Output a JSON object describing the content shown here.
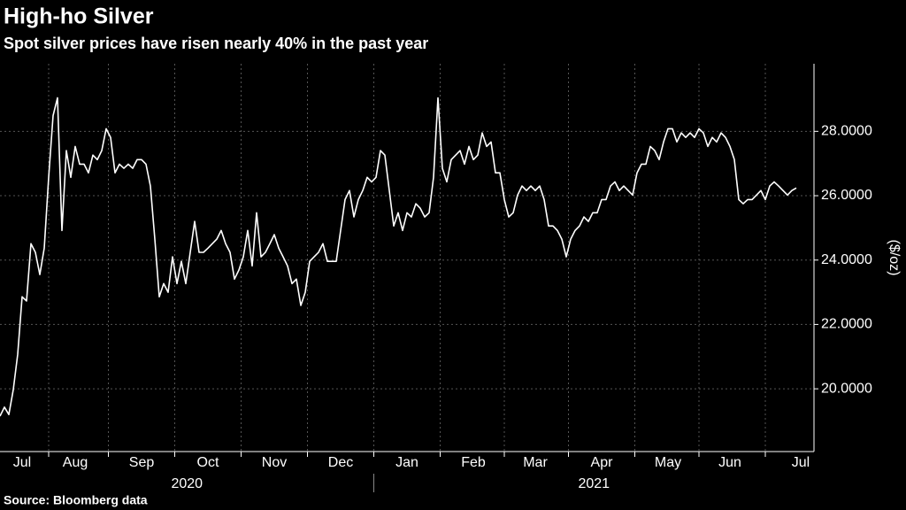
{
  "chart_data": {
    "type": "line",
    "title": "High-ho Silver",
    "subtitle": "Spot silver prices have risen nearly 40% in the past year",
    "y_axis_label": "($/oz)",
    "source": "Source: Bloomberg data",
    "color": "#ffffff",
    "grid": true,
    "ylim": [
      18.05,
      30.1
    ],
    "yticks": [
      {
        "value": 20,
        "label": "20.0000"
      },
      {
        "value": 22,
        "label": "22.0000"
      },
      {
        "value": 24,
        "label": "24.0000"
      },
      {
        "value": 26,
        "label": "26.0000"
      },
      {
        "value": 28,
        "label": "28.0000"
      }
    ],
    "years": [
      "2020",
      "2021"
    ],
    "categories": [
      null,
      null,
      null,
      null,
      null,
      "Jul",
      null,
      null,
      null,
      null,
      null,
      null,
      null,
      null,
      null,
      null,
      null,
      "Aug",
      null,
      null,
      null,
      null,
      null,
      null,
      null,
      null,
      null,
      null,
      null,
      null,
      null,
      null,
      "Sep",
      null,
      null,
      null,
      null,
      null,
      null,
      null,
      null,
      null,
      null,
      null,
      null,
      null,
      null,
      "Oct",
      null,
      null,
      null,
      null,
      null,
      null,
      null,
      null,
      null,
      null,
      null,
      null,
      null,
      null,
      "Nov",
      null,
      null,
      null,
      null,
      null,
      null,
      null,
      null,
      null,
      null,
      null,
      null,
      null,
      null,
      "Dec",
      null,
      null,
      null,
      null,
      null,
      null,
      null,
      null,
      null,
      null,
      null,
      null,
      null,
      null,
      "Jan",
      null,
      null,
      null,
      null,
      null,
      null,
      null,
      null,
      null,
      null,
      null,
      null,
      null,
      null,
      "Feb",
      null,
      null,
      null,
      null,
      null,
      null,
      null,
      null,
      null,
      null,
      null,
      null,
      null,
      "Mar",
      null,
      null,
      null,
      null,
      null,
      null,
      null,
      null,
      null,
      null,
      null,
      null,
      null,
      null,
      "Apr",
      null,
      null,
      null,
      null,
      null,
      null,
      null,
      null,
      null,
      null,
      null,
      null,
      null,
      null,
      "May",
      null,
      null,
      null,
      null,
      null,
      null,
      null,
      null,
      null,
      null,
      null,
      null,
      null,
      "Jun",
      null,
      null,
      null,
      null,
      null,
      null,
      null,
      null,
      null,
      null,
      null,
      null,
      null,
      null,
      null,
      "Jul"
    ],
    "values": [
      19.15,
      19.43,
      19.2,
      19.97,
      21.07,
      22.86,
      22.73,
      24.51,
      24.24,
      23.55,
      24.37,
      26.57,
      28.49,
      29.04,
      24.92,
      27.4,
      26.57,
      27.53,
      26.98,
      26.98,
      26.71,
      27.26,
      27.12,
      27.4,
      28.08,
      27.81,
      26.71,
      26.98,
      26.85,
      26.98,
      26.85,
      27.12,
      27.12,
      26.98,
      26.3,
      24.65,
      22.86,
      23.27,
      23.0,
      24.1,
      23.27,
      23.96,
      23.27,
      24.24,
      25.2,
      24.24,
      24.24,
      24.37,
      24.51,
      24.65,
      24.92,
      24.51,
      24.24,
      23.41,
      23.69,
      24.1,
      24.92,
      23.82,
      25.47,
      24.1,
      24.24,
      24.51,
      24.79,
      24.37,
      24.1,
      23.82,
      23.27,
      23.41,
      22.59,
      23.0,
      23.96,
      24.1,
      24.24,
      24.51,
      23.96,
      23.96,
      23.96,
      24.92,
      25.88,
      26.16,
      25.34,
      25.88,
      26.16,
      26.57,
      26.43,
      26.57,
      27.4,
      27.26,
      26.16,
      25.06,
      25.47,
      24.92,
      25.47,
      25.34,
      25.75,
      25.61,
      25.34,
      25.47,
      26.57,
      29.04,
      26.85,
      26.43,
      27.12,
      27.26,
      27.4,
      26.98,
      27.53,
      27.12,
      27.26,
      27.95,
      27.53,
      27.67,
      26.71,
      26.71,
      25.88,
      25.34,
      25.47,
      26.02,
      26.3,
      26.16,
      26.3,
      26.16,
      26.3,
      25.88,
      25.06,
      25.06,
      24.92,
      24.65,
      24.1,
      24.65,
      24.92,
      25.06,
      25.34,
      25.2,
      25.47,
      25.47,
      25.88,
      25.88,
      26.3,
      26.43,
      26.16,
      26.3,
      26.16,
      26.02,
      26.71,
      26.98,
      26.98,
      27.53,
      27.4,
      27.12,
      27.67,
      28.08,
      28.08,
      27.67,
      27.95,
      27.81,
      27.95,
      27.81,
      28.08,
      27.95,
      27.53,
      27.81,
      27.67,
      27.95,
      27.81,
      27.53,
      27.12,
      25.88,
      25.75,
      25.88,
      25.88,
      26.02,
      26.16,
      25.88,
      26.3,
      26.43,
      26.3,
      26.16,
      26.02,
      26.16,
      26.24,
      null
    ]
  }
}
